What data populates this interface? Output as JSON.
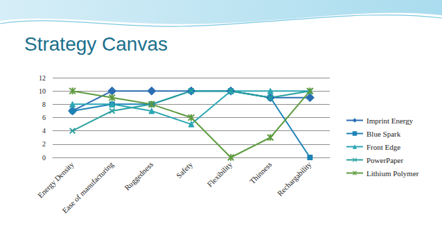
{
  "chart_data": {
    "type": "line",
    "title": "Strategy Canvas",
    "categories": [
      "Energy Density",
      "Ease of manufacturing",
      "Ruggedness",
      "Safety",
      "Flexibility",
      "Thinness",
      "Rechargability"
    ],
    "series": [
      {
        "name": "Imprint Energy",
        "color": "#2a6db3",
        "marker": "diamond",
        "values": [
          7,
          10,
          10,
          10,
          10,
          9,
          9
        ]
      },
      {
        "name": "Blue Spark",
        "color": "#1c83b6",
        "marker": "square",
        "values": [
          7,
          8,
          8,
          10,
          10,
          9,
          0
        ]
      },
      {
        "name": "Front Edge",
        "color": "#2ba6b3",
        "marker": "triangle",
        "values": [
          8,
          8,
          7,
          5,
          10,
          10,
          10
        ]
      },
      {
        "name": "PowerPaper",
        "color": "#27a09e",
        "marker": "x",
        "values": [
          4,
          7,
          8,
          10,
          10,
          9,
          10
        ]
      },
      {
        "name": "Lithium Polymer",
        "color": "#5e9b3f",
        "marker": "star",
        "values": [
          10,
          9,
          8,
          6,
          0,
          3,
          10
        ]
      }
    ],
    "ylim": [
      0,
      12
    ],
    "yticks": [
      0,
      2,
      4,
      6,
      8,
      10,
      12
    ],
    "grid": true,
    "legend": "right"
  }
}
